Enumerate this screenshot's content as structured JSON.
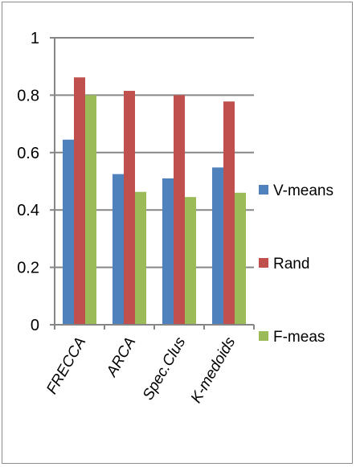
{
  "chart_data": {
    "type": "bar",
    "categories": [
      "FRECCA",
      "ARCA",
      "Spec.Clus",
      "K-medoids"
    ],
    "series": [
      {
        "name": "V-means",
        "color": "#4f81bd",
        "values": [
          0.645,
          0.525,
          0.51,
          0.548
        ]
      },
      {
        "name": "Rand",
        "color": "#c0504d",
        "values": [
          0.862,
          0.815,
          0.8,
          0.778
        ]
      },
      {
        "name": "F-meas",
        "color": "#9bbb59",
        "values": [
          0.8,
          0.463,
          0.445,
          0.46
        ]
      }
    ],
    "ylim": [
      0,
      1
    ],
    "yticks": [
      "0",
      "0.2",
      "0.4",
      "0.6",
      "0.8",
      "1"
    ],
    "grid": true,
    "legend_position": "right",
    "title": "",
    "xlabel": "",
    "ylabel": ""
  }
}
